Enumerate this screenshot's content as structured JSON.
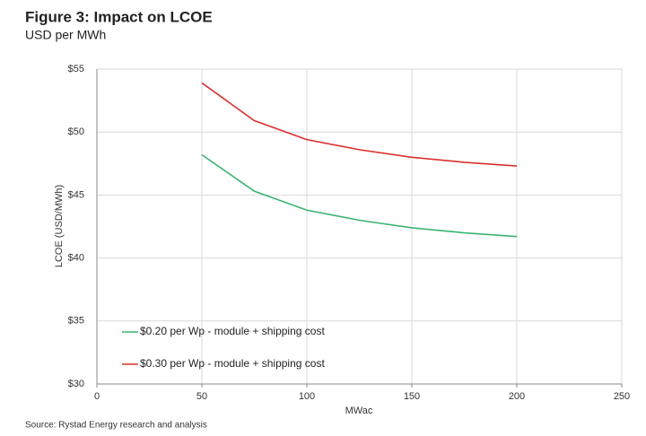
{
  "chart_data": {
    "type": "line",
    "title": "Figure 3: Impact on LCOE",
    "subtitle": "USD per MWh",
    "x_label": "MWac",
    "y_label": "LCOE (USD/MWh)",
    "source": "Source: Rystad Energy research and analysis",
    "x": [
      50,
      75,
      100,
      125,
      150,
      175,
      200
    ],
    "series": [
      {
        "name": "$0.20 per Wp - module + shipping cost",
        "color": "#3cb371",
        "values": [
          48.2,
          45.3,
          43.8,
          43.0,
          42.4,
          42.0,
          41.7
        ]
      },
      {
        "name": "$0.30 per Wp - module + shipping cost",
        "color": "#d9302c",
        "values": [
          53.9,
          50.9,
          49.4,
          48.6,
          48.0,
          47.6,
          47.3
        ]
      }
    ],
    "xlim": [
      0,
      250
    ],
    "xticks": [
      0,
      50,
      100,
      150,
      200,
      250
    ],
    "ylim": [
      30,
      55
    ],
    "yticks": [
      {
        "value": 30,
        "label": "$30"
      },
      {
        "value": 35,
        "label": "$35"
      },
      {
        "value": 40,
        "label": "$40"
      },
      {
        "value": 45,
        "label": "$45"
      },
      {
        "value": 50,
        "label": "$50"
      },
      {
        "value": 55,
        "label": "$55"
      }
    ],
    "grid": true,
    "legend": "lower-left"
  }
}
